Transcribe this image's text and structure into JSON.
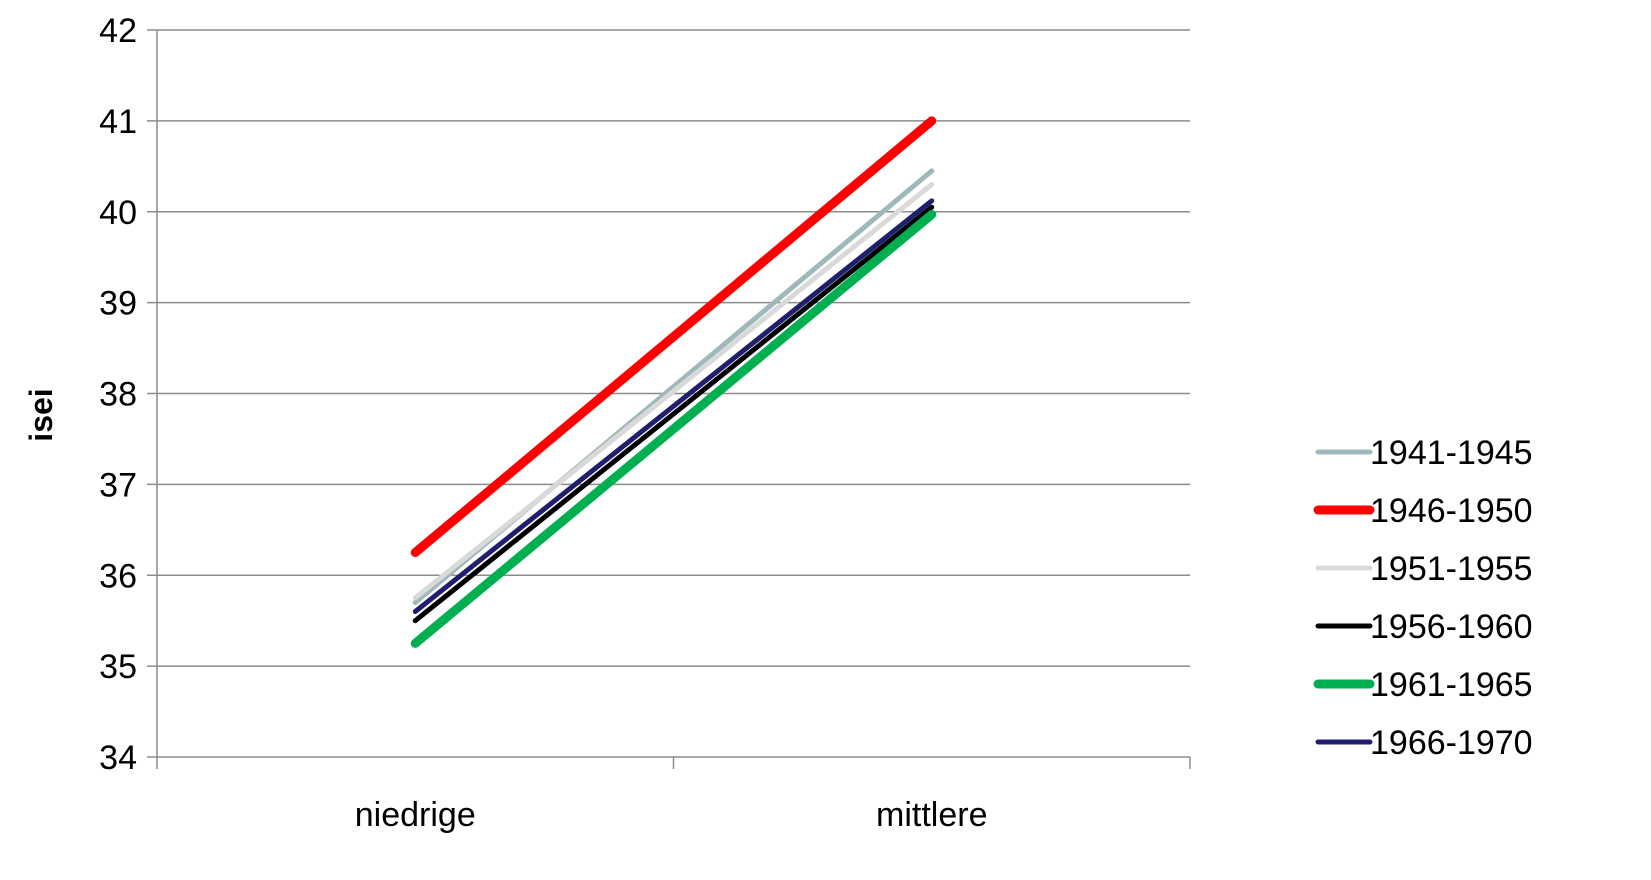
{
  "chart_data": {
    "type": "line",
    "title": "",
    "xlabel": "",
    "ylabel": "isei",
    "categories": [
      "niedrige",
      "mittlere"
    ],
    "ylim": [
      34,
      42
    ],
    "yticks": [
      34,
      35,
      36,
      37,
      38,
      39,
      40,
      41,
      42
    ],
    "grid": true,
    "legend_position": "right",
    "series": [
      {
        "name": "1941-1945",
        "values": [
          35.7,
          40.45
        ],
        "color": "#9fb8bc"
      },
      {
        "name": "1946-1950",
        "values": [
          36.25,
          41.0
        ],
        "color": "#ff0000"
      },
      {
        "name": "1951-1955",
        "values": [
          35.75,
          40.3
        ],
        "color": "#d9d9d9"
      },
      {
        "name": "1956-1960",
        "values": [
          35.5,
          40.05
        ],
        "color": "#000000"
      },
      {
        "name": "1961-1965",
        "values": [
          35.25,
          39.97
        ],
        "color": "#00b050"
      },
      {
        "name": "1966-1970",
        "values": [
          35.6,
          40.12
        ],
        "color": "#1f1f6e"
      }
    ]
  }
}
